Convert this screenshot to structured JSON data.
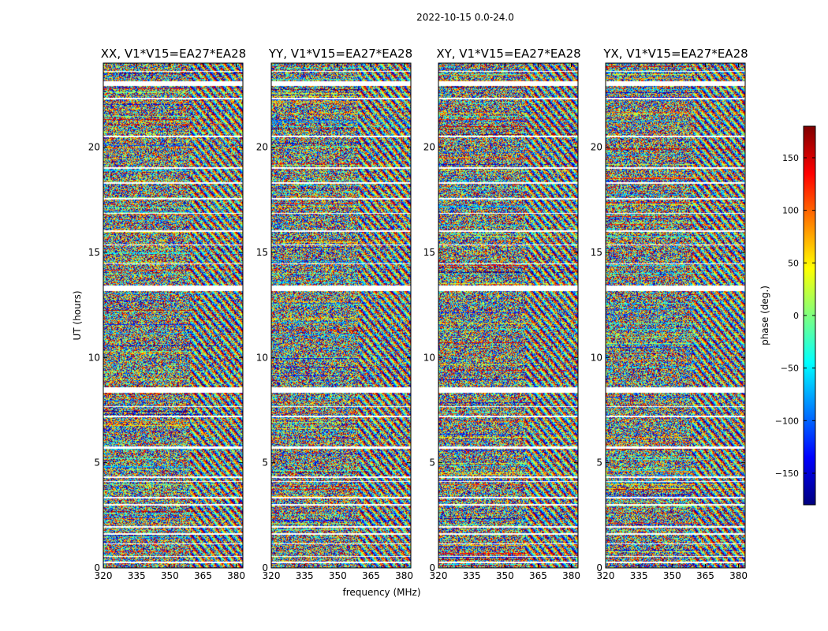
{
  "chart_data": {
    "type": "heatmap",
    "suptitle": "2022-10-15 0.0-24.0",
    "xlabel": "frequency (MHz)",
    "ylabel": "UT (hours)",
    "xlim": [
      320,
      383
    ],
    "ylim": [
      0,
      24
    ],
    "xticks": [
      320,
      335,
      350,
      365,
      380
    ],
    "yticks": [
      0,
      5,
      10,
      15,
      20
    ],
    "colorbar": {
      "label": "phase (deg.)",
      "colormap": "jet",
      "range": [
        -180,
        180
      ],
      "ticks": [
        150,
        100,
        50,
        0,
        -50,
        -100,
        -150
      ],
      "tick_labels": [
        "150",
        "100",
        "50",
        "0",
        "−50",
        "−100",
        "−150"
      ]
    },
    "panels": [
      {
        "title": "XX, V1*V15=EA27*EA28",
        "seed": 11
      },
      {
        "title": "YY, V1*V15=EA27*EA28",
        "seed": 23
      },
      {
        "title": "XY, V1*V15=EA27*EA28",
        "seed": 37
      },
      {
        "title": "YX, V1*V15=EA27*EA28",
        "seed": 53
      }
    ],
    "flagged_ut_hours": [
      [
        0.25,
        0.32
      ],
      [
        0.55,
        0.6
      ],
      [
        1.15,
        1.2
      ],
      [
        1.6,
        1.68
      ],
      [
        1.95,
        2.02
      ],
      [
        3.0,
        3.05
      ],
      [
        3.3,
        3.38
      ],
      [
        4.1,
        4.15
      ],
      [
        4.3,
        4.36
      ],
      [
        5.7,
        5.78
      ],
      [
        7.2,
        7.25
      ],
      [
        7.65,
        7.7
      ],
      [
        8.35,
        8.62
      ],
      [
        13.2,
        13.45
      ],
      [
        14.45,
        14.5
      ],
      [
        15.35,
        15.4
      ],
      [
        16.0,
        16.07
      ],
      [
        16.85,
        16.9
      ],
      [
        17.55,
        17.6
      ],
      [
        18.3,
        18.35
      ],
      [
        19.0,
        19.05
      ],
      [
        20.5,
        20.55
      ],
      [
        22.3,
        22.35
      ],
      [
        22.95,
        23.15
      ],
      [
        23.6,
        23.65
      ]
    ]
  }
}
